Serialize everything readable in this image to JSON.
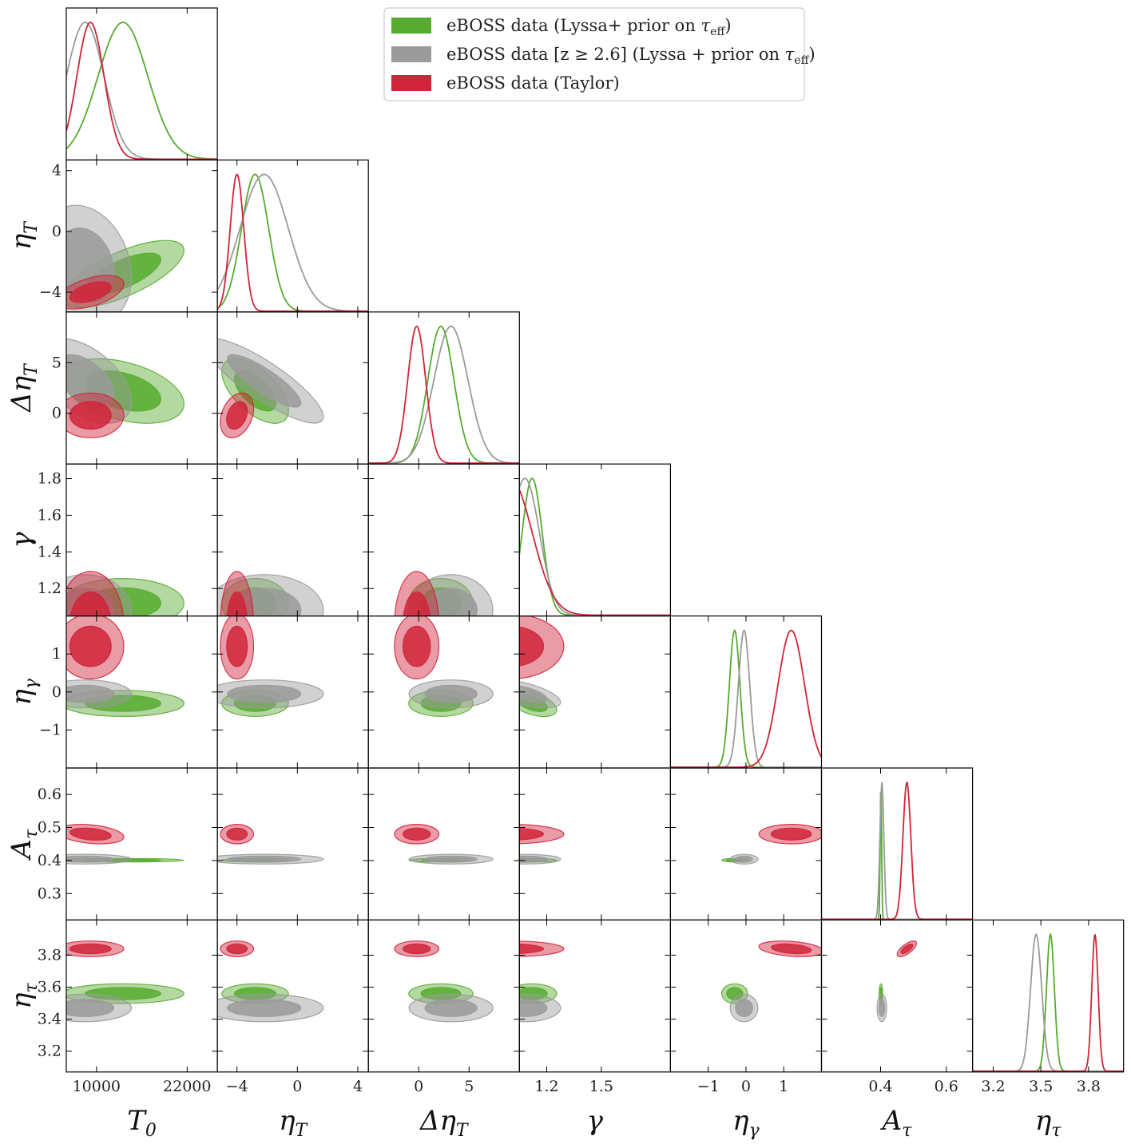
{
  "chart_data": {
    "type": "corner",
    "title": "",
    "parameters": [
      {
        "key": "T0",
        "label": "T",
        "sub": "0",
        "range": [
          6000,
          26000
        ],
        "ticks": [
          {
            "v": 10000,
            "label": "10000"
          },
          {
            "v": 22000,
            "label": "22000"
          }
        ],
        "ytick_labels": false
      },
      {
        "key": "etaT",
        "label": "η",
        "sub": "T",
        "range": [
          -5.3,
          4.7
        ],
        "ticks": [
          {
            "v": -4,
            "label": "−4"
          },
          {
            "v": 0,
            "label": "0"
          },
          {
            "v": 4,
            "label": "4"
          }
        ]
      },
      {
        "key": "DetaT",
        "label": "Δη",
        "sub": "T",
        "range": [
          -5.0,
          10.0
        ],
        "ticks": [
          {
            "v": 0,
            "label": "0"
          },
          {
            "v": 5,
            "label": "5"
          }
        ]
      },
      {
        "key": "gamma",
        "label": "γ",
        "sub": "",
        "range": [
          1.05,
          1.88
        ],
        "ticks": [
          {
            "v": 1.2,
            "label": "1.2"
          },
          {
            "v": 1.4,
            "label": "1.4"
          },
          {
            "v": 1.5,
            "label": "1.5"
          },
          {
            "v": 1.6,
            "label": "1.6"
          },
          {
            "v": 1.8,
            "label": "1.8"
          }
        ]
      },
      {
        "key": "etagamma",
        "label": "η",
        "sub": "γ",
        "range": [
          -2.0,
          2.0
        ],
        "ticks": [
          {
            "v": -1,
            "label": "−1"
          },
          {
            "v": 0,
            "label": "0"
          },
          {
            "v": 1,
            "label": "1"
          }
        ]
      },
      {
        "key": "Atau",
        "label": "A",
        "sub": "τ",
        "range": [
          0.22,
          0.68
        ],
        "ticks": [
          {
            "v": 0.3,
            "label": "0.3"
          },
          {
            "v": 0.4,
            "label": "0.4"
          },
          {
            "v": 0.5,
            "label": "0.5"
          },
          {
            "v": 0.6,
            "label": "0.6"
          }
        ]
      },
      {
        "key": "etatau",
        "label": "η",
        "sub": "τ",
        "range": [
          3.07,
          4.02
        ],
        "ticks": [
          {
            "v": 3.2,
            "label": "3.2"
          },
          {
            "v": 3.4,
            "label": "3.4"
          },
          {
            "v": 3.5,
            "label": "3.5"
          },
          {
            "v": 3.6,
            "label": "3.6"
          },
          {
            "v": 3.8,
            "label": "3.8"
          }
        ]
      }
    ],
    "xtick_labels": {
      "T0": [
        "10000",
        "22000"
      ],
      "etaT": [
        "−4",
        "0",
        "4"
      ],
      "DetaT": [
        "0",
        "5"
      ],
      "gamma": [
        "1.2",
        "1.5"
      ],
      "etagamma": [
        "−1",
        "0",
        "1"
      ],
      "Atau": [
        "0.4",
        "0.6"
      ],
      "etatau": [
        "3.2",
        "3.5",
        "3.8"
      ]
    },
    "ytick_labels": {
      "etaT": [
        "4",
        "0",
        "−4"
      ],
      "DetaT": [
        "5",
        "0"
      ],
      "gamma": [
        "1.8",
        "1.6",
        "1.4",
        "1.2"
      ],
      "etagamma": [
        "1",
        "0",
        "−1"
      ],
      "Atau": [
        "0.6",
        "0.5",
        "0.4",
        "0.3"
      ],
      "etatau": [
        "3.8",
        "3.6",
        "3.4",
        "3.2"
      ]
    },
    "legend": {
      "position": "top-center"
    },
    "series": [
      {
        "name": "eBOSS data (Lyssa+ prior on τ_eff)",
        "legend_main": "eBOSS data (Lyssa+ prior on ",
        "legend_tail": ")",
        "color": "#56ab2f",
        "mean": [
          13500,
          -2.8,
          2.2,
          1.12,
          -0.3,
          0.401,
          3.56
        ],
        "sigma": [
          3300,
          0.9,
          1.3,
          0.055,
          0.14,
          0.0022,
          0.025
        ],
        "corr": {
          "T0-etaT": 0.7,
          "T0-DetaT": -0.4,
          "etaT-DetaT": -0.6,
          "gamma-etagamma": -0.5
        }
      },
      {
        "name": "eBOSS data [z ≥ 2.6] (Lyssa + prior on τ_eff)",
        "legend_main": "eBOSS data [z ≥ 2.6] (Lyssa + prior on ",
        "legend_tail": ")",
        "color": "#9a9a9a",
        "mean": [
          8500,
          -2.2,
          3.2,
          1.08,
          -0.05,
          0.404,
          3.47
        ],
        "sigma": [
          2500,
          1.6,
          1.7,
          0.08,
          0.15,
          0.006,
          0.035
        ],
        "corr": {
          "T0-etaT": -0.2,
          "T0-DetaT": -0.5,
          "etaT-DetaT": -0.85,
          "gamma-etagamma": -0.6
        }
      },
      {
        "name": "eBOSS data (Taylor)",
        "legend_main": "eBOSS data (Taylor)",
        "legend_tail": "",
        "color": "#d0243a",
        "mean": [
          9200,
          -4.0,
          -0.2,
          1.0,
          1.2,
          0.48,
          3.84
        ],
        "sigma": [
          1800,
          0.45,
          0.9,
          0.12,
          0.35,
          0.012,
          0.02
        ],
        "corr": {
          "T0-etaT": 0.5,
          "etaT-DetaT": 0.3,
          "T0-Atau": -0.3,
          "Atau-etatau": 0.7,
          "etagamma-etatau": -0.3
        }
      }
    ]
  }
}
